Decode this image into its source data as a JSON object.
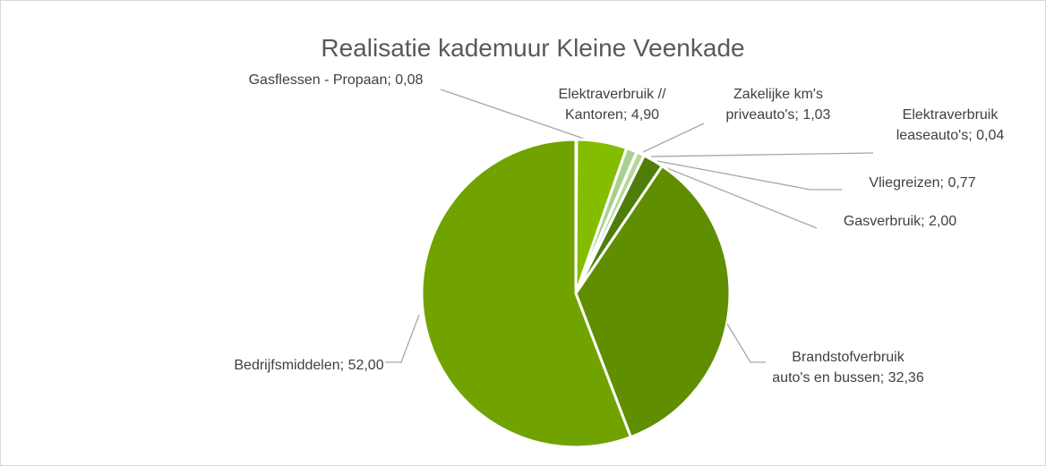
{
  "chart_data": {
    "type": "pie",
    "title": "Realisatie kademuur Kleine Veenkade",
    "categories": [
      "Gasflessen - Propaan",
      "Elektraverbruik // Kantoren",
      "Zakelijke km's priveauto's",
      "Elektraverbruik leaseauto's",
      "Vliegreizen",
      "Gasverbruik",
      "Brandstofverbruik auto's en bussen",
      "Bedrijfsmiddelen"
    ],
    "values": [
      0.08,
      4.9,
      1.03,
      0.04,
      0.77,
      2.0,
      32.36,
      52.0
    ],
    "value_labels": [
      "0,08",
      "4,90",
      "1,03",
      "0,04",
      "0,77",
      "2,00",
      "32,36",
      "52,00"
    ],
    "label_separator": ";",
    "colors": [
      "#c5e0b4",
      "#84bd00",
      "#a9d18e",
      "#d4e8c8",
      "#b7d79a",
      "#4e7d0a",
      "#5f8f00",
      "#70a300"
    ]
  }
}
